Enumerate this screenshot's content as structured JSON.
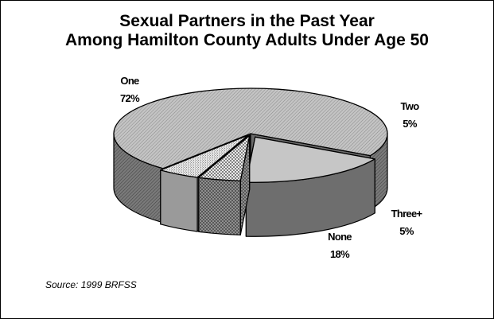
{
  "chart_data": {
    "type": "pie",
    "title_lines": [
      "Sexual Partners in the Past Year",
      "Among Hamilton County Adults Under Age 50"
    ],
    "slices": [
      {
        "label": "One",
        "value": 72,
        "value_label": "72%",
        "color": "#b8b8b8",
        "pattern": "diagonal-hatch"
      },
      {
        "label": "Two",
        "value": 5,
        "value_label": "5%",
        "color": "#d8d8d8",
        "pattern": "dense-dots"
      },
      {
        "label": "Three+",
        "value": 5,
        "value_label": "5%",
        "color": "#ffffff",
        "pattern": "crosshatch"
      },
      {
        "label": "None",
        "value": 18,
        "value_label": "18%",
        "color": "#c8c8c8",
        "pattern": "solid"
      }
    ],
    "exploded_slice": "None",
    "style": "3d-tilted"
  },
  "source_note": "Source: 1999 BRFSS"
}
